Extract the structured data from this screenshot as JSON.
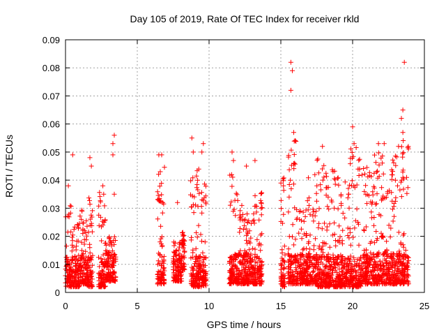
{
  "chart_data": {
    "type": "scatter",
    "title": "Day 105 of 2019, Rate Of TEC Index for receiver rkld",
    "xlabel": "GPS time / hours",
    "ylabel": "ROTI / TECUs",
    "xlim": [
      0,
      25
    ],
    "ylim": [
      0,
      0.09
    ],
    "xticks": [
      "0",
      "5",
      "10",
      "15",
      "20",
      "25"
    ],
    "yticks": [
      "0",
      "0.01",
      "0.02",
      "0.03",
      "0.04",
      "0.05",
      "0.06",
      "0.07",
      "0.08",
      "0.09"
    ],
    "grid": true,
    "marker": "+",
    "series": [
      {
        "color": "#ff0000",
        "points": [
          [
            0.2,
            0.038
          ],
          [
            0.5,
            0.049
          ],
          [
            1.7,
            0.048
          ],
          [
            1.8,
            0.045
          ],
          [
            2.6,
            0.038
          ],
          [
            3.3,
            0.049
          ],
          [
            3.3,
            0.053
          ],
          [
            3.4,
            0.056
          ],
          [
            3.4,
            0.035
          ],
          [
            6.5,
            0.049
          ],
          [
            6.7,
            0.049
          ],
          [
            6.6,
            0.043
          ],
          [
            7.8,
            0.032
          ],
          [
            8.8,
            0.055
          ],
          [
            8.9,
            0.05
          ],
          [
            9.6,
            0.053
          ],
          [
            9.5,
            0.05
          ],
          [
            11.6,
            0.05
          ],
          [
            11.7,
            0.047
          ],
          [
            12.6,
            0.045
          ],
          [
            13.2,
            0.047
          ],
          [
            15.7,
            0.082
          ],
          [
            15.8,
            0.079
          ],
          [
            15.7,
            0.072
          ],
          [
            15.9,
            0.057
          ],
          [
            17.9,
            0.052
          ],
          [
            20.0,
            0.059
          ],
          [
            20.1,
            0.053
          ],
          [
            21.8,
            0.053
          ],
          [
            22.2,
            0.053
          ],
          [
            23.2,
            0.052
          ],
          [
            23.4,
            0.062
          ],
          [
            23.5,
            0.065
          ],
          [
            23.5,
            0.057
          ],
          [
            23.6,
            0.082
          ]
        ],
        "clusters": [
          {
            "x_start": 0.0,
            "x_end": 0.4,
            "y_min": 0.002,
            "y_max": 0.031
          },
          {
            "x_start": 0.4,
            "x_end": 1.0,
            "y_min": 0.002,
            "y_max": 0.025
          },
          {
            "x_start": 1.0,
            "x_end": 1.5,
            "y_min": 0.003,
            "y_max": 0.03
          },
          {
            "x_start": 1.5,
            "x_end": 1.9,
            "y_min": 0.002,
            "y_max": 0.034
          },
          {
            "x_start": 2.3,
            "x_end": 2.8,
            "y_min": 0.002,
            "y_max": 0.036
          },
          {
            "x_start": 2.8,
            "x_end": 3.5,
            "y_min": 0.004,
            "y_max": 0.02
          },
          {
            "x_start": 6.4,
            "x_end": 6.9,
            "y_min": 0.003,
            "y_max": 0.046
          },
          {
            "x_start": 7.5,
            "x_end": 8.1,
            "y_min": 0.004,
            "y_max": 0.018
          },
          {
            "x_start": 8.1,
            "x_end": 8.3,
            "y_min": 0.008,
            "y_max": 0.022
          },
          {
            "x_start": 8.7,
            "x_end": 9.3,
            "y_min": 0.002,
            "y_max": 0.044
          },
          {
            "x_start": 9.3,
            "x_end": 9.8,
            "y_min": 0.002,
            "y_max": 0.042
          },
          {
            "x_start": 11.4,
            "x_end": 12.0,
            "y_min": 0.003,
            "y_max": 0.042
          },
          {
            "x_start": 12.0,
            "x_end": 12.6,
            "y_min": 0.003,
            "y_max": 0.033
          },
          {
            "x_start": 12.6,
            "x_end": 13.1,
            "y_min": 0.003,
            "y_max": 0.028
          },
          {
            "x_start": 13.1,
            "x_end": 13.7,
            "y_min": 0.003,
            "y_max": 0.036
          },
          {
            "x_start": 15.0,
            "x_end": 15.3,
            "y_min": 0.002,
            "y_max": 0.041
          },
          {
            "x_start": 15.5,
            "x_end": 16.1,
            "y_min": 0.003,
            "y_max": 0.055
          },
          {
            "x_start": 16.1,
            "x_end": 16.8,
            "y_min": 0.003,
            "y_max": 0.032
          },
          {
            "x_start": 16.8,
            "x_end": 17.5,
            "y_min": 0.003,
            "y_max": 0.042
          },
          {
            "x_start": 17.5,
            "x_end": 18.2,
            "y_min": 0.002,
            "y_max": 0.049
          },
          {
            "x_start": 18.2,
            "x_end": 19.0,
            "y_min": 0.002,
            "y_max": 0.044
          },
          {
            "x_start": 19.0,
            "x_end": 19.8,
            "y_min": 0.002,
            "y_max": 0.04
          },
          {
            "x_start": 19.8,
            "x_end": 20.6,
            "y_min": 0.002,
            "y_max": 0.052
          },
          {
            "x_start": 20.6,
            "x_end": 21.3,
            "y_min": 0.003,
            "y_max": 0.047
          },
          {
            "x_start": 21.3,
            "x_end": 22.1,
            "y_min": 0.003,
            "y_max": 0.05
          },
          {
            "x_start": 22.1,
            "x_end": 22.8,
            "y_min": 0.003,
            "y_max": 0.044
          },
          {
            "x_start": 22.8,
            "x_end": 23.4,
            "y_min": 0.003,
            "y_max": 0.049
          },
          {
            "x_start": 23.4,
            "x_end": 23.9,
            "y_min": 0.003,
            "y_max": 0.055
          }
        ]
      }
    ]
  }
}
